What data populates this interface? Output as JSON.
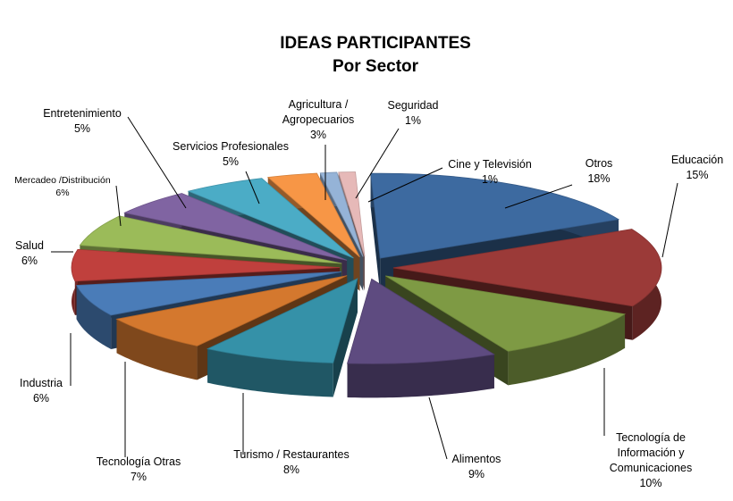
{
  "chart_data": {
    "type": "pie",
    "title": "IDEAS PARTICIPANTES",
    "subtitle": "Por Sector",
    "slices": [
      {
        "name": "Otros",
        "value": 18,
        "label": "18%",
        "color": "#3d6aa0"
      },
      {
        "name": "Educación",
        "value": 15,
        "label": "15%",
        "color": "#9b3a38"
      },
      {
        "name": "Tecnología de Información y Comunicaciones",
        "value": 10,
        "label": "10%",
        "color": "#7e9a44"
      },
      {
        "name": "Alimentos",
        "value": 9,
        "label": "9%",
        "color": "#5e4b80"
      },
      {
        "name": "Turismo / Restaurantes",
        "value": 8,
        "label": "8%",
        "color": "#3591a8"
      },
      {
        "name": "Tecnología Otras",
        "value": 7,
        "label": "7%",
        "color": "#d4782e"
      },
      {
        "name": "Industria",
        "value": 6,
        "label": "6%",
        "color": "#4a7cb8"
      },
      {
        "name": "Salud",
        "value": 6,
        "label": "6%",
        "color": "#c0403d"
      },
      {
        "name": "Mercadeo  /Distribución",
        "value": 6,
        "label": "6%",
        "color": "#9bbb59"
      },
      {
        "name": "Entretenimiento",
        "value": 5,
        "label": "5%",
        "color": "#8064a2"
      },
      {
        "name": "Servicios Profesionales",
        "value": 5,
        "label": "5%",
        "color": "#4bacc6"
      },
      {
        "name": "Agricultura / Agropecuarios",
        "value": 3,
        "label": "3%",
        "color": "#f79646"
      },
      {
        "name": "Seguridad",
        "value": 1,
        "label": "1%",
        "color": "#95b3d7"
      },
      {
        "name": "Cine y Televisión",
        "value": 1,
        "label": "1%",
        "color": "#e6b9b8"
      }
    ],
    "exploded": true,
    "three_d": true,
    "legend": "none"
  }
}
